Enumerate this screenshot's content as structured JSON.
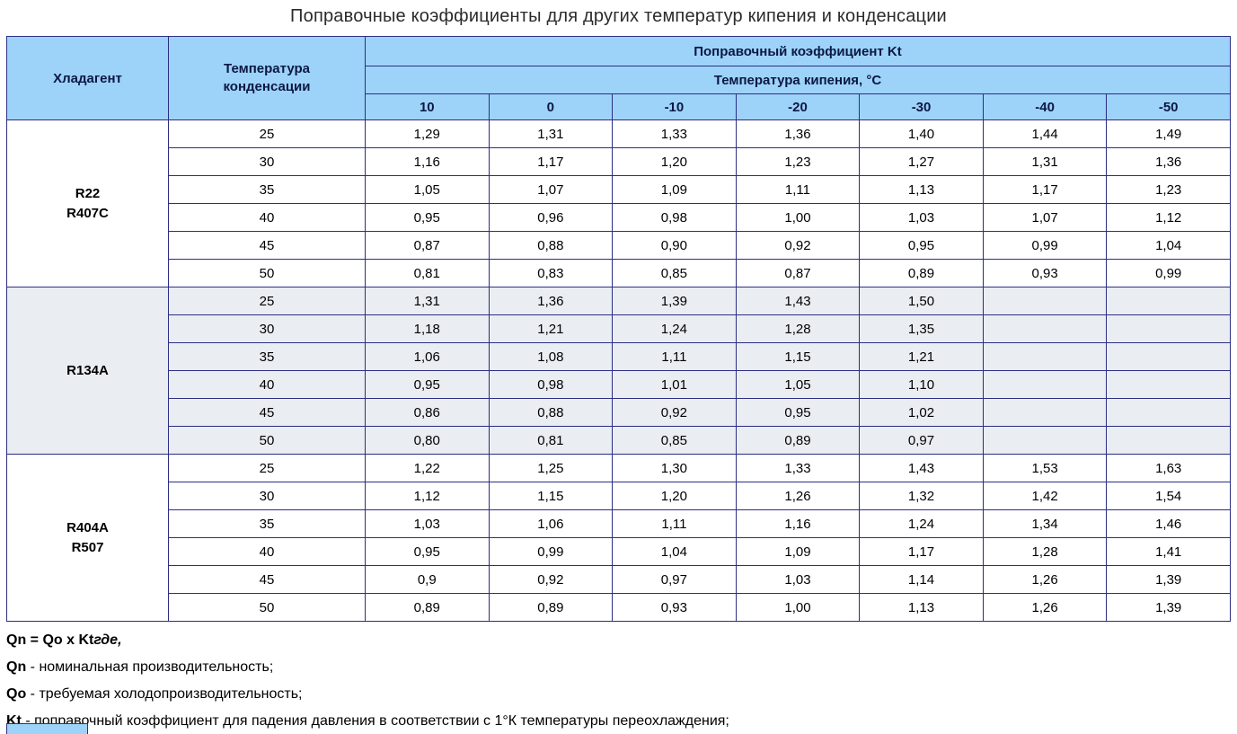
{
  "title": "Поправочные коэффициенты для других температур кипения и конденсации",
  "table": {
    "headers": {
      "refrigerant": "Хладагент",
      "condensation_line1": "Температура",
      "condensation_line2": "конденсации",
      "coefficient_title": "Поправочный коэффициент Kt",
      "boiling_title": "Температура кипения, °С",
      "boiling_temps": [
        "10",
        "0",
        "-10",
        "-20",
        "-30",
        "-40",
        "-50"
      ]
    },
    "groups": [
      {
        "refrigerant_lines": [
          "R22",
          "R407C"
        ],
        "shaded": false,
        "rows": [
          {
            "condensation": "25",
            "values": [
              "1,29",
              "1,31",
              "1,33",
              "1,36",
              "1,40",
              "1,44",
              "1,49"
            ]
          },
          {
            "condensation": "30",
            "values": [
              "1,16",
              "1,17",
              "1,20",
              "1,23",
              "1,27",
              "1,31",
              "1,36"
            ]
          },
          {
            "condensation": "35",
            "values": [
              "1,05",
              "1,07",
              "1,09",
              "1,11",
              "1,13",
              "1,17",
              "1,23"
            ]
          },
          {
            "condensation": "40",
            "values": [
              "0,95",
              "0,96",
              "0,98",
              "1,00",
              "1,03",
              "1,07",
              "1,12"
            ]
          },
          {
            "condensation": "45",
            "values": [
              "0,87",
              "0,88",
              "0,90",
              "0,92",
              "0,95",
              "0,99",
              "1,04"
            ]
          },
          {
            "condensation": "50",
            "values": [
              "0,81",
              "0,83",
              "0,85",
              "0,87",
              "0,89",
              "0,93",
              "0,99"
            ]
          }
        ]
      },
      {
        "refrigerant_lines": [
          "R134A"
        ],
        "shaded": true,
        "rows": [
          {
            "condensation": "25",
            "values": [
              "1,31",
              "1,36",
              "1,39",
              "1,43",
              "1,50",
              "",
              ""
            ]
          },
          {
            "condensation": "30",
            "values": [
              "1,18",
              "1,21",
              "1,24",
              "1,28",
              "1,35",
              "",
              ""
            ]
          },
          {
            "condensation": "35",
            "values": [
              "1,06",
              "1,08",
              "1,11",
              "1,15",
              "1,21",
              "",
              ""
            ]
          },
          {
            "condensation": "40",
            "values": [
              "0,95",
              "0,98",
              "1,01",
              "1,05",
              "1,10",
              "",
              ""
            ]
          },
          {
            "condensation": "45",
            "values": [
              "0,86",
              "0,88",
              "0,92",
              "0,95",
              "1,02",
              "",
              ""
            ]
          },
          {
            "condensation": "50",
            "values": [
              "0,80",
              "0,81",
              "0,85",
              "0,89",
              "0,97",
              "",
              ""
            ]
          }
        ]
      },
      {
        "refrigerant_lines": [
          "R404A",
          "R507"
        ],
        "shaded": false,
        "rows": [
          {
            "condensation": "25",
            "values": [
              "1,22",
              "1,25",
              "1,30",
              "1,33",
              "1,43",
              "1,53",
              "1,63"
            ]
          },
          {
            "condensation": "30",
            "values": [
              "1,12",
              "1,15",
              "1,20",
              "1,26",
              "1,32",
              "1,42",
              "1,54"
            ]
          },
          {
            "condensation": "35",
            "values": [
              "1,03",
              "1,06",
              "1,11",
              "1,16",
              "1,24",
              "1,34",
              "1,46"
            ]
          },
          {
            "condensation": "40",
            "values": [
              "0,95",
              "0,99",
              "1,04",
              "1,09",
              "1,17",
              "1,28",
              "1,41"
            ]
          },
          {
            "condensation": "45",
            "values": [
              "0,9",
              "0,92",
              "0,97",
              "1,03",
              "1,14",
              "1,26",
              "1,39"
            ]
          },
          {
            "condensation": "50",
            "values": [
              "0,89",
              "0,89",
              "0,93",
              "1,00",
              "1,13",
              "1,26",
              "1,39"
            ]
          }
        ]
      }
    ]
  },
  "footnotes": [
    {
      "bold": "Qn = Qo x Kt",
      "italic": "где,",
      "rest": ""
    },
    {
      "bold": "Qn",
      "italic": "",
      "rest": " - номинальная производительность;"
    },
    {
      "bold": "Qo",
      "italic": "",
      "rest": " - требуемая холодопроизводительность;"
    },
    {
      "bold": "Kt",
      "italic": "",
      "rest": " - поправочный коэффициент для падения давления в соответствии с 1°К температуры переохлаждения;"
    }
  ],
  "colors": {
    "header_bg": "#9ED3F9",
    "border": "#2B2E83",
    "shaded_row_bg": "#EAEDF2",
    "text": "#000000"
  }
}
